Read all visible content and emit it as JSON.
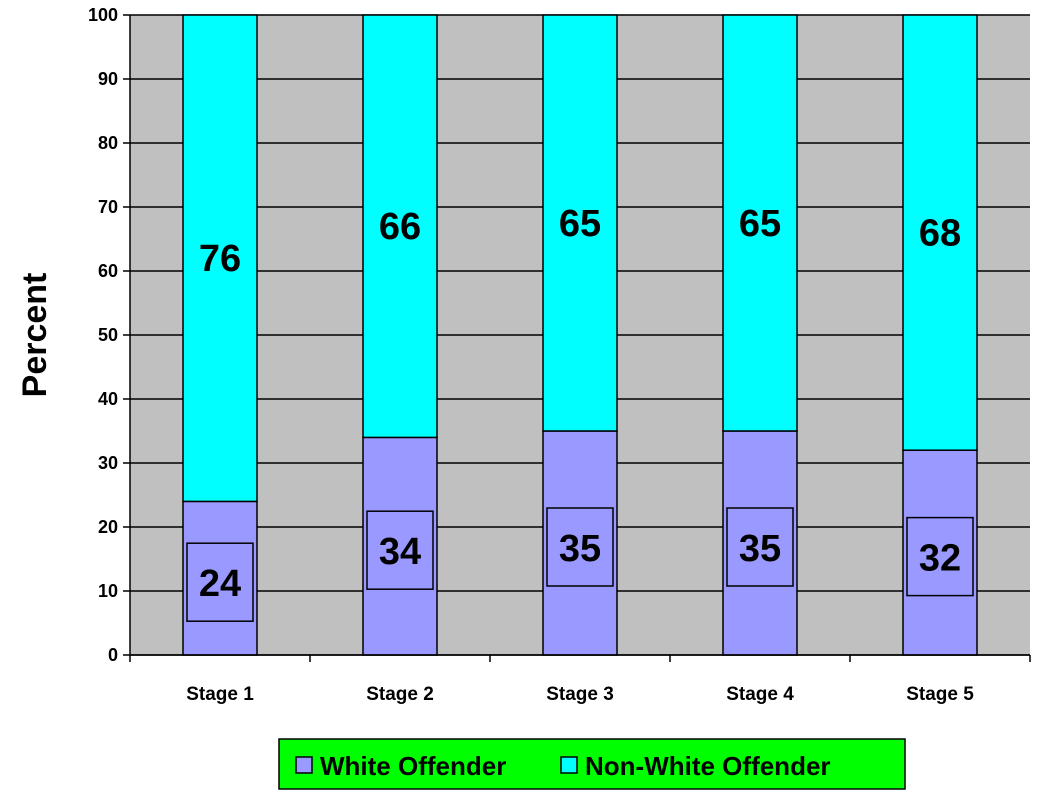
{
  "chart_data": {
    "type": "bar",
    "stacked": true,
    "categories": [
      "Stage 1",
      "Stage 2",
      "Stage 3",
      "Stage 4",
      "Stage 5"
    ],
    "series": [
      {
        "name": "White Offender",
        "values": [
          24,
          34,
          35,
          35,
          32
        ]
      },
      {
        "name": "Non-White Offender",
        "values": [
          76,
          66,
          65,
          65,
          68
        ]
      }
    ],
    "ylabel": "Percent",
    "ylim": [
      0,
      100
    ],
    "yticks": [
      "0",
      "10",
      "20",
      "30",
      "40",
      "50",
      "60",
      "70",
      "80",
      "90",
      "100"
    ],
    "grid": true,
    "legend_position": "bottom",
    "data_labels": {
      "White Offender": [
        "24",
        "34",
        "35",
        "35",
        "32"
      ],
      "Non-White Offender": [
        "76",
        "66",
        "65",
        "65",
        "68"
      ]
    }
  },
  "colors": {
    "plot_background": "#c0c0c0",
    "white_offender": "#9999ff",
    "non_white_offender": "#00ffff",
    "legend_background": "#00ff00",
    "gridline": "#000000"
  }
}
